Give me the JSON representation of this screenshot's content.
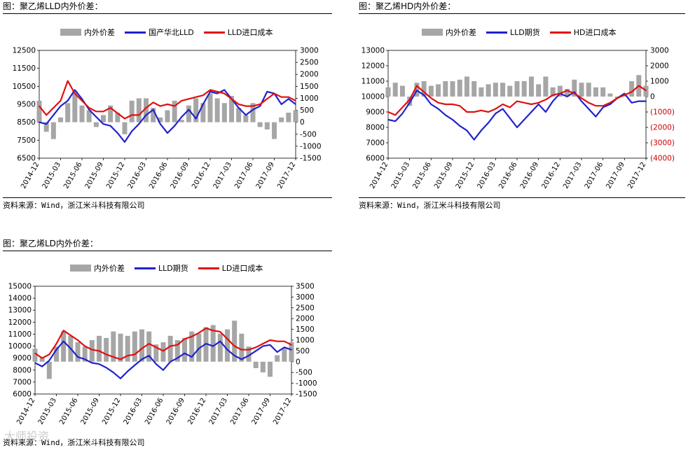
{
  "panels": [
    {
      "title": "图：聚乙烯LLD内外价差：",
      "source": "资料来源：Wind，浙江米斗科技有限公司",
      "legend": [
        "内外价差",
        "国产华北LLD",
        "LLD进口成本"
      ]
    },
    {
      "title": "图：聚乙烯HD内外价差：",
      "source": "资料来源：Wind，浙江米斗科技有限公司",
      "legend": [
        "内外价差",
        "LLD期货",
        "HD进口成本"
      ]
    },
    {
      "title": "图：聚乙烯LD内外价差：",
      "source": "资料来源：Wind，浙江米斗科技有限公司",
      "legend": [
        "内外价差",
        "LLD期货",
        "LD进口成本"
      ]
    }
  ],
  "watermark": "大师投资",
  "colors": {
    "spread": "#a6a6a6",
    "domestic": "#2222cc",
    "import": "#e01010"
  },
  "chart_data": [
    {
      "type": "line",
      "title": "聚乙烯LLD内外价差",
      "x_tick_labels": [
        "2014-12",
        "2015-03",
        "2015-06",
        "2015-09",
        "2015-12",
        "2016-03",
        "2016-06",
        "2016-09",
        "2016-12",
        "2017-03",
        "2017-06",
        "2017-09",
        "2017-12"
      ],
      "x": [
        "2014-12",
        "2015-01",
        "2015-02",
        "2015-03",
        "2015-04",
        "2015-05",
        "2015-06",
        "2015-07",
        "2015-08",
        "2015-09",
        "2015-10",
        "2015-11",
        "2015-12",
        "2016-01",
        "2016-02",
        "2016-03",
        "2016-04",
        "2016-05",
        "2016-06",
        "2016-07",
        "2016-08",
        "2016-09",
        "2016-10",
        "2016-11",
        "2016-12",
        "2017-01",
        "2017-02",
        "2017-03",
        "2017-04",
        "2017-05",
        "2017-06",
        "2017-07",
        "2017-08",
        "2017-09",
        "2017-10",
        "2017-11",
        "2017-12"
      ],
      "y_left_ticks": [
        6500,
        7500,
        8500,
        9500,
        10500,
        11500,
        12500
      ],
      "y_left_lim": [
        6500,
        12500
      ],
      "y_right_ticks": [
        -1500,
        -1000,
        -500,
        0,
        500,
        1000,
        1500,
        2000,
        2500,
        3000
      ],
      "y_right_lim": [
        -1500,
        3000
      ],
      "series": [
        {
          "name": "内外价差",
          "axis": "right",
          "kind": "area",
          "values": [
            900,
            -400,
            -700,
            200,
            800,
            1300,
            700,
            500,
            -200,
            300,
            700,
            400,
            -500,
            900,
            1000,
            1000,
            600,
            200,
            500,
            900,
            100,
            700,
            1000,
            800,
            1200,
            1000,
            800,
            1100,
            600,
            300,
            800,
            -200,
            -300,
            -700,
            200,
            400,
            500
          ]
        },
        {
          "name": "国产华北LLD",
          "axis": "left",
          "kind": "line",
          "values": [
            8500,
            8400,
            8900,
            9400,
            9700,
            10300,
            9800,
            9200,
            8800,
            8400,
            8300,
            7900,
            7400,
            8000,
            8400,
            8900,
            9200,
            8400,
            7900,
            8300,
            8800,
            9200,
            8700,
            9500,
            10200,
            10100,
            10300,
            9800,
            9300,
            8900,
            9200,
            9400,
            10200,
            10100,
            9500,
            9800,
            9500
          ]
        },
        {
          "name": "LLD进口成本",
          "axis": "left",
          "kind": "line",
          "values": [
            9400,
            8900,
            9300,
            9700,
            10800,
            10100,
            9700,
            9300,
            9100,
            9100,
            9300,
            9000,
            8700,
            8900,
            8900,
            9300,
            9600,
            9400,
            9500,
            9400,
            9700,
            9800,
            9900,
            10000,
            10300,
            10200,
            10100,
            9800,
            9500,
            9400,
            9400,
            9500,
            9800,
            10100,
            9900,
            9900,
            9700
          ]
        }
      ]
    },
    {
      "type": "line",
      "title": "聚乙烯HD内外价差",
      "x_tick_labels": [
        "2014-12",
        "2015-03",
        "2015-06",
        "2015-09",
        "2015-12",
        "2016-03",
        "2016-06",
        "2016-09",
        "2016-12",
        "2017-03",
        "2017-06",
        "2017-09",
        "2017-12"
      ],
      "x": [
        "2014-12",
        "2015-01",
        "2015-02",
        "2015-03",
        "2015-04",
        "2015-05",
        "2015-06",
        "2015-07",
        "2015-08",
        "2015-09",
        "2015-10",
        "2015-11",
        "2015-12",
        "2016-01",
        "2016-02",
        "2016-03",
        "2016-04",
        "2016-05",
        "2016-06",
        "2016-07",
        "2016-08",
        "2016-09",
        "2016-10",
        "2016-11",
        "2016-12",
        "2017-01",
        "2017-02",
        "2017-03",
        "2017-04",
        "2017-05",
        "2017-06",
        "2017-07",
        "2017-08",
        "2017-09",
        "2017-10",
        "2017-11",
        "2017-12"
      ],
      "y_left_ticks": [
        6000,
        7000,
        8000,
        9000,
        10000,
        11000,
        12000,
        13000
      ],
      "y_left_lim": [
        6000,
        13000
      ],
      "y_right_ticks": [
        -4000,
        -3000,
        -2000,
        -1000,
        0,
        1000,
        2000,
        3000
      ],
      "y_right_tick_labels": [
        "(4000)",
        "(3000)",
        "(2000)",
        "(1000)",
        "0",
        "1000",
        "2000",
        "3000"
      ],
      "y_right_lim": [
        -4000,
        3000
      ],
      "series": [
        {
          "name": "内外价差",
          "axis": "right",
          "kind": "area",
          "values": [
            600,
            900,
            700,
            -600,
            900,
            1000,
            700,
            800,
            1000,
            1000,
            1100,
            1300,
            1000,
            600,
            800,
            900,
            900,
            700,
            1000,
            1000,
            1300,
            800,
            1300,
            600,
            700,
            500,
            1100,
            900,
            900,
            600,
            600,
            200,
            -100,
            100,
            1000,
            1400,
            700
          ]
        },
        {
          "name": "LLD期货",
          "axis": "left",
          "kind": "line",
          "values": [
            8500,
            8400,
            8900,
            9600,
            10400,
            10100,
            9500,
            9200,
            8800,
            8500,
            8100,
            7800,
            7200,
            7800,
            8300,
            8900,
            9200,
            8600,
            8000,
            8500,
            9000,
            9500,
            9000,
            9700,
            10200,
            10000,
            10300,
            9700,
            9200,
            8700,
            9300,
            9500,
            9900,
            10200,
            9600,
            9700,
            9700
          ]
        },
        {
          "name": "HD进口成本",
          "axis": "left",
          "kind": "line",
          "values": [
            9000,
            8800,
            9300,
            9800,
            10700,
            10300,
            9900,
            9600,
            9500,
            9500,
            9400,
            9000,
            9000,
            9100,
            9000,
            9200,
            9500,
            9300,
            9700,
            9600,
            9500,
            9600,
            9800,
            10100,
            10200,
            10400,
            10200,
            9900,
            9600,
            9400,
            9400,
            9600,
            9900,
            10100,
            10300,
            10700,
            10400
          ]
        }
      ]
    },
    {
      "type": "line",
      "title": "聚乙烯LD内外价差",
      "x_tick_labels": [
        "2014-12",
        "2015-03",
        "2015-06",
        "2015-09",
        "2015-12",
        "2016-03",
        "2016-06",
        "2016-09",
        "2016-12",
        "2017-03",
        "2017-06",
        "2017-09",
        "2017-12"
      ],
      "x": [
        "2014-12",
        "2015-01",
        "2015-02",
        "2015-03",
        "2015-04",
        "2015-05",
        "2015-06",
        "2015-07",
        "2015-08",
        "2015-09",
        "2015-10",
        "2015-11",
        "2015-12",
        "2016-01",
        "2016-02",
        "2016-03",
        "2016-04",
        "2016-05",
        "2016-06",
        "2016-07",
        "2016-08",
        "2016-09",
        "2016-10",
        "2016-11",
        "2016-12",
        "2017-01",
        "2017-02",
        "2017-03",
        "2017-04",
        "2017-05",
        "2017-06",
        "2017-07",
        "2017-08",
        "2017-09",
        "2017-10",
        "2017-11",
        "2017-12"
      ],
      "y_left_ticks": [
        6000,
        7000,
        8000,
        9000,
        10000,
        11000,
        12000,
        13000,
        14000,
        15000
      ],
      "y_left_lim": [
        6000,
        15000
      ],
      "y_right_ticks": [
        -1500,
        -1000,
        -500,
        0,
        500,
        1000,
        1500,
        2000,
        2500,
        3000,
        3500
      ],
      "y_right_lim": [
        -1500,
        3500
      ],
      "series": [
        {
          "name": "内外价差",
          "axis": "right",
          "kind": "area",
          "values": [
            600,
            200,
            -800,
            700,
            1400,
            1200,
            900,
            700,
            1000,
            1200,
            1100,
            1400,
            1300,
            1200,
            1400,
            1500,
            1400,
            800,
            900,
            1200,
            1000,
            1100,
            1400,
            1300,
            1600,
            1700,
            1300,
            1500,
            1900,
            1300,
            700,
            -300,
            -500,
            -700,
            300,
            600,
            900
          ]
        },
        {
          "name": "LLD期货",
          "axis": "left",
          "kind": "line",
          "values": [
            8600,
            8300,
            8800,
            9700,
            10400,
            9800,
            9100,
            8900,
            8600,
            8500,
            8200,
            7800,
            7300,
            7900,
            8400,
            8900,
            9200,
            8500,
            8000,
            8700,
            9000,
            9400,
            9100,
            9800,
            10200,
            10000,
            10400,
            9700,
            9200,
            8900,
            9200,
            9600,
            10000,
            10100,
            9500,
            9900,
            9700
          ]
        },
        {
          "name": "LD进口成本",
          "axis": "left",
          "kind": "line",
          "values": [
            9400,
            9000,
            9300,
            10200,
            11300,
            10900,
            10500,
            10000,
            9700,
            9600,
            9300,
            9100,
            8900,
            9200,
            9300,
            9800,
            10200,
            9900,
            9600,
            10000,
            10100,
            10600,
            10800,
            11100,
            11500,
            11300,
            11200,
            10600,
            10000,
            9700,
            9700,
            9900,
            10200,
            10500,
            10400,
            10400,
            10100
          ]
        }
      ]
    }
  ]
}
